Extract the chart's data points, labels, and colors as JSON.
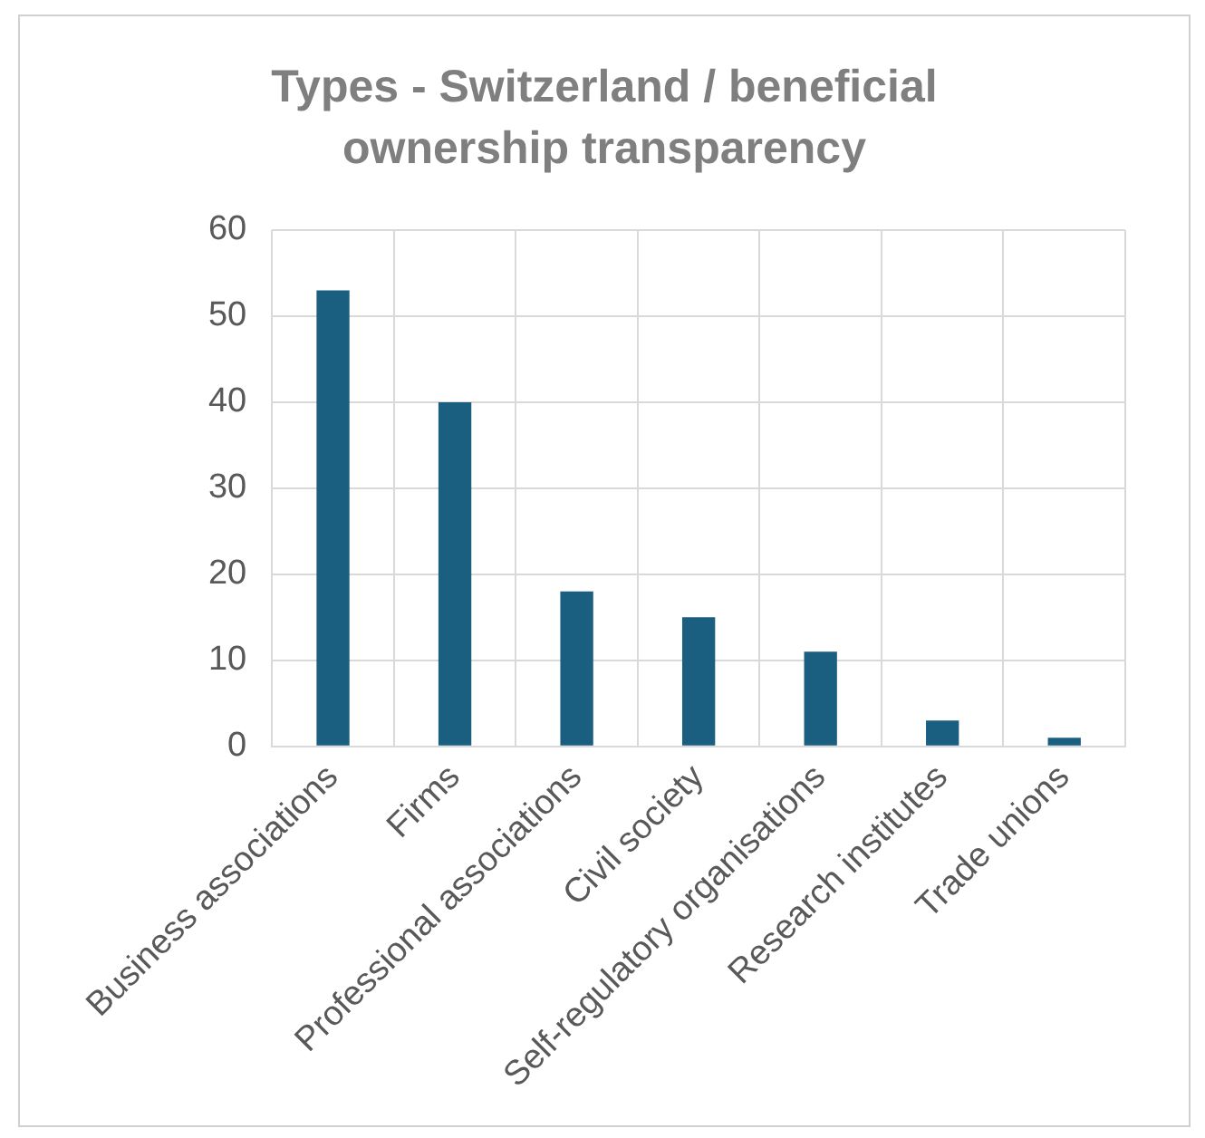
{
  "chart_data": {
    "type": "bar",
    "title": "Types - Switzerland / beneficial ownership transparency",
    "categories": [
      "Business associations",
      "Firms",
      "Professional associations",
      "Civil society",
      "Self-regulatory organisations",
      "Research institutes",
      "Trade unions"
    ],
    "values": [
      53,
      40,
      18,
      15,
      11,
      3,
      1
    ],
    "color": "#1a5e80",
    "ylim": [
      0,
      60
    ],
    "yticks": [
      0,
      10,
      20,
      30,
      40,
      50,
      60
    ],
    "grid": true
  }
}
